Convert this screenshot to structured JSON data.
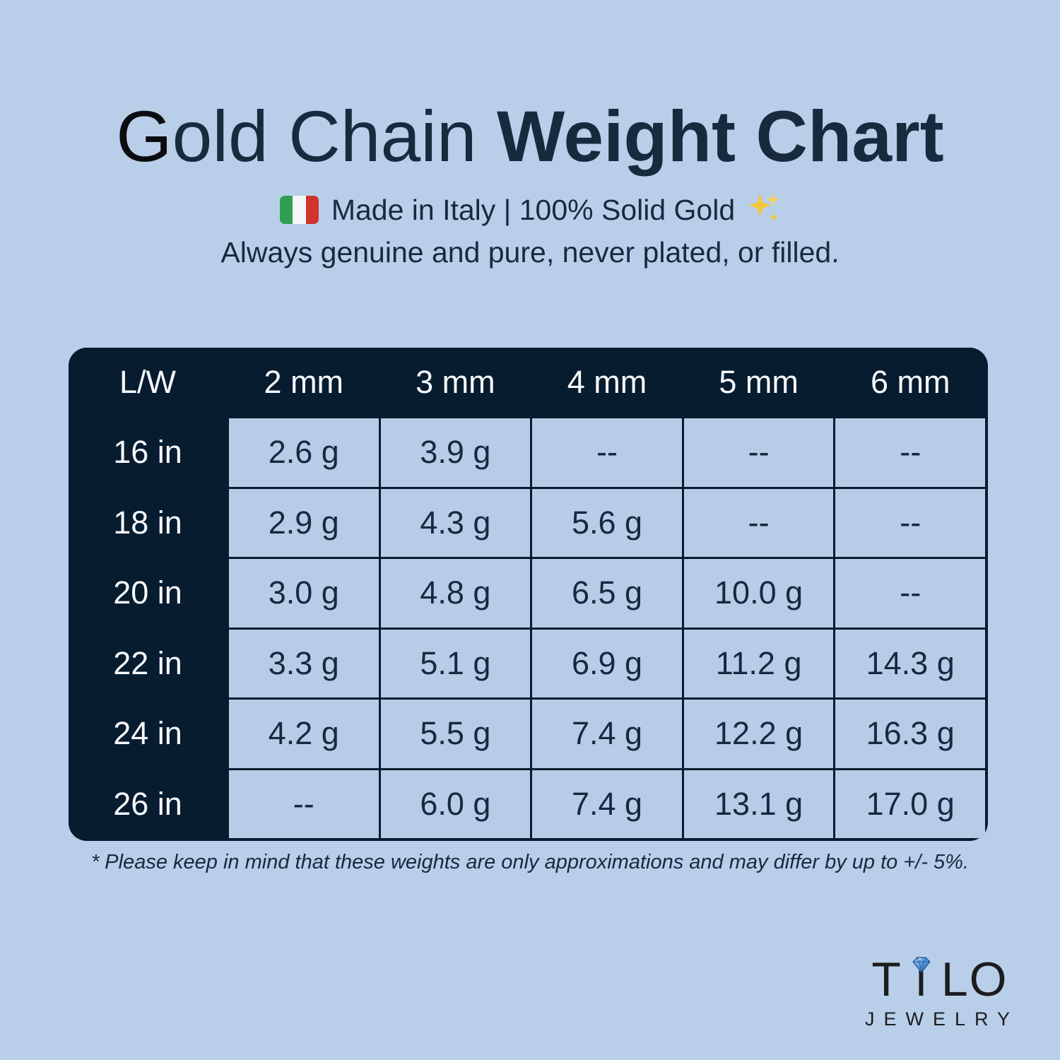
{
  "header": {
    "title_initial": "G",
    "title_regular": "old Chain ",
    "title_bold": "Weight Chart",
    "subtitle": "Made in Italy | 100% Solid Gold",
    "flag_icon": "italy-flag",
    "sparkle_icon": "sparkles",
    "tagline": "Always genuine and pure, never plated, or filled."
  },
  "chart_data": {
    "type": "table",
    "title": "Gold Chain Weight Chart",
    "corner_label": "L/W",
    "columns": [
      "2 mm",
      "3 mm",
      "4 mm",
      "5 mm",
      "6 mm"
    ],
    "rows": [
      "16 in",
      "18 in",
      "20 in",
      "22 in",
      "24 in",
      "26 in"
    ],
    "values": [
      [
        "2.6 g",
        "3.9 g",
        "--",
        "--",
        "--"
      ],
      [
        "2.9 g",
        "4.3 g",
        "5.6 g",
        "--",
        "--"
      ],
      [
        "3.0 g",
        "4.8 g",
        "6.5 g",
        "10.0 g",
        "--"
      ],
      [
        "3.3 g",
        "5.1 g",
        "6.9 g",
        "11.2 g",
        "14.3 g"
      ],
      [
        "4.2 g",
        "5.5 g",
        "7.4 g",
        "12.2 g",
        "16.3 g"
      ],
      [
        "--",
        "6.0 g",
        "7.4 g",
        "13.1 g",
        "17.0 g"
      ]
    ]
  },
  "footnote": "* Please keep in mind that these weights are only approximations and may differ by up to +/- 5%.",
  "logo": {
    "letters_before_diamond": "T",
    "letter_i_dotless": "ı",
    "letters_after": "LO",
    "diamond_icon": "diamond",
    "subtext": "JEWELRY"
  },
  "colors": {
    "background": "#b9cfe9",
    "table_navy": "#081c30",
    "cell_blue": "#b7cde7",
    "text_navy": "#182a3e",
    "header_text_white": "#f7fafd",
    "logo_black": "#1c1c1e",
    "flag_green": "#2f9e50",
    "flag_red": "#d0342c",
    "diamond_blue": "#3f85d0",
    "sparkle_gold": "#f2c63e"
  }
}
